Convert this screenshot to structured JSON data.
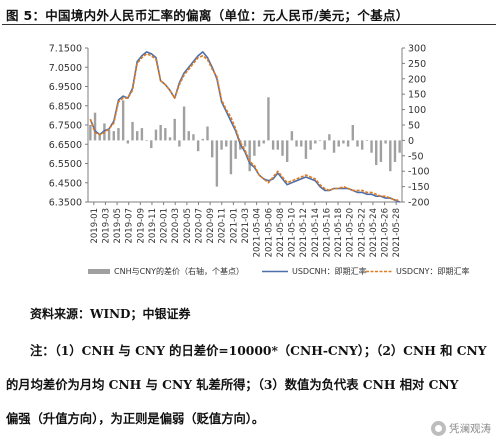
{
  "figure": {
    "title": "图 5：中国境内外人民币汇率的偏离（单位：元人民币/美元；个基点）"
  },
  "source": "资料来源：WIND；中银证券",
  "notes": [
    "注：（1）CNH 与 CNY 的日差价=10000*（CNH-CNY）；（2）CNH 和 CNY",
    "的月均差价为月均 CNH 与 CNY 轧差所得；（3）数值为负代表 CNH 相对 CNY",
    "偏强（升值方向），为正则是偏弱（贬值方向）。"
  ],
  "watermark": "凭澜观涛",
  "colors": {
    "bar": "#a0a0a0",
    "usdcnh": "#4f6fa8",
    "usdcny": "#e07b20",
    "axis": "#7f7f7f",
    "text": "#333333"
  },
  "chart_data": {
    "type": "bar",
    "title": "",
    "y_left": {
      "ticks": [
        "6.3500",
        "6.4500",
        "6.5500",
        "6.6500",
        "6.7500",
        "6.8500",
        "6.9500",
        "7.0500",
        "7.1500"
      ],
      "range": [
        6.35,
        7.15
      ]
    },
    "y_right": {
      "ticks": [
        "-200",
        "-150",
        "-100",
        "-50",
        "0",
        "50",
        "100",
        "150",
        "200",
        "250",
        "300"
      ],
      "range": [
        -200,
        300
      ]
    },
    "x_tick_labels": [
      "2019-01",
      "2019-03",
      "2019-05",
      "2019-07",
      "2019-09",
      "2019-11",
      "2020-01",
      "2020-03",
      "2020-05",
      "2020-07",
      "2020-09",
      "2020-11",
      "2021-01",
      "2021-03",
      "2021-05-04",
      "2021-05-06",
      "2021-05-08",
      "2021-05-10",
      "2021-05-12",
      "2021-05-14",
      "2021-05-16",
      "2021-05-18",
      "2021-05-20",
      "2021-05-22",
      "2021-05-24",
      "2021-05-26",
      "2021-05-28"
    ],
    "legend": [
      "CNH与CNY的差价（右轴，个基点）",
      "USDCNH：即期汇率",
      "USDCNY：即期汇率"
    ],
    "legend_position": "bottom",
    "series": [
      {
        "name": "CNH与CNY的差价（右轴，个基点）",
        "axis": "right",
        "kind": "bar",
        "values": [
          50,
          90,
          20,
          55,
          35,
          30,
          40,
          130,
          -10,
          60,
          30,
          40,
          0,
          -25,
          35,
          50,
          40,
          10,
          70,
          -20,
          110,
          30,
          20,
          -35,
          5,
          45,
          -55,
          -150,
          -30,
          -20,
          -110,
          -60,
          -30,
          -20,
          -100,
          -50,
          -20,
          -10,
          140,
          -30,
          -30,
          -50,
          -70,
          30,
          -20,
          -20,
          -60,
          -30,
          -10,
          0,
          -30,
          20,
          -40,
          -20,
          -10,
          -20,
          50,
          -20,
          -30,
          0,
          -40,
          -80,
          -70,
          -10,
          -100,
          -70,
          -40
        ]
      },
      {
        "name": "USDCNH：即期汇率",
        "axis": "left",
        "kind": "line",
        "values": [
          6.78,
          6.72,
          6.7,
          6.72,
          6.73,
          6.77,
          6.88,
          6.9,
          6.89,
          6.94,
          7.08,
          7.11,
          7.13,
          7.12,
          7.1,
          6.98,
          6.96,
          6.93,
          6.89,
          6.97,
          7.02,
          7.05,
          7.08,
          7.11,
          7.13,
          7.1,
          7.05,
          6.99,
          6.87,
          6.82,
          6.77,
          6.72,
          6.65,
          6.61,
          6.55,
          6.53,
          6.49,
          6.47,
          6.46,
          6.47,
          6.5,
          6.47,
          6.44,
          6.45,
          6.46,
          6.47,
          6.48,
          6.47,
          6.46,
          6.43,
          6.41,
          6.41,
          6.42,
          6.42,
          6.42,
          6.42,
          6.41,
          6.4,
          6.4,
          6.39,
          6.39,
          6.38,
          6.38,
          6.37,
          6.37,
          6.36,
          6.35
        ]
      },
      {
        "name": "USDCNY：即期汇率",
        "axis": "left",
        "kind": "line",
        "values": [
          6.78,
          6.71,
          6.7,
          6.71,
          6.73,
          6.76,
          6.87,
          6.89,
          6.89,
          6.93,
          7.07,
          7.1,
          7.12,
          7.11,
          7.09,
          6.98,
          6.96,
          6.93,
          6.89,
          6.96,
          7.01,
          7.04,
          7.07,
          7.1,
          7.11,
          7.09,
          7.04,
          7.0,
          6.88,
          6.83,
          6.79,
          6.73,
          6.66,
          6.62,
          6.56,
          6.54,
          6.49,
          6.47,
          6.45,
          6.48,
          6.51,
          6.48,
          6.45,
          6.46,
          6.47,
          6.48,
          6.49,
          6.48,
          6.47,
          6.44,
          6.42,
          6.41,
          6.42,
          6.42,
          6.43,
          6.42,
          6.41,
          6.41,
          6.41,
          6.4,
          6.4,
          6.39,
          6.38,
          6.38,
          6.37,
          6.36,
          6.36
        ]
      }
    ]
  }
}
